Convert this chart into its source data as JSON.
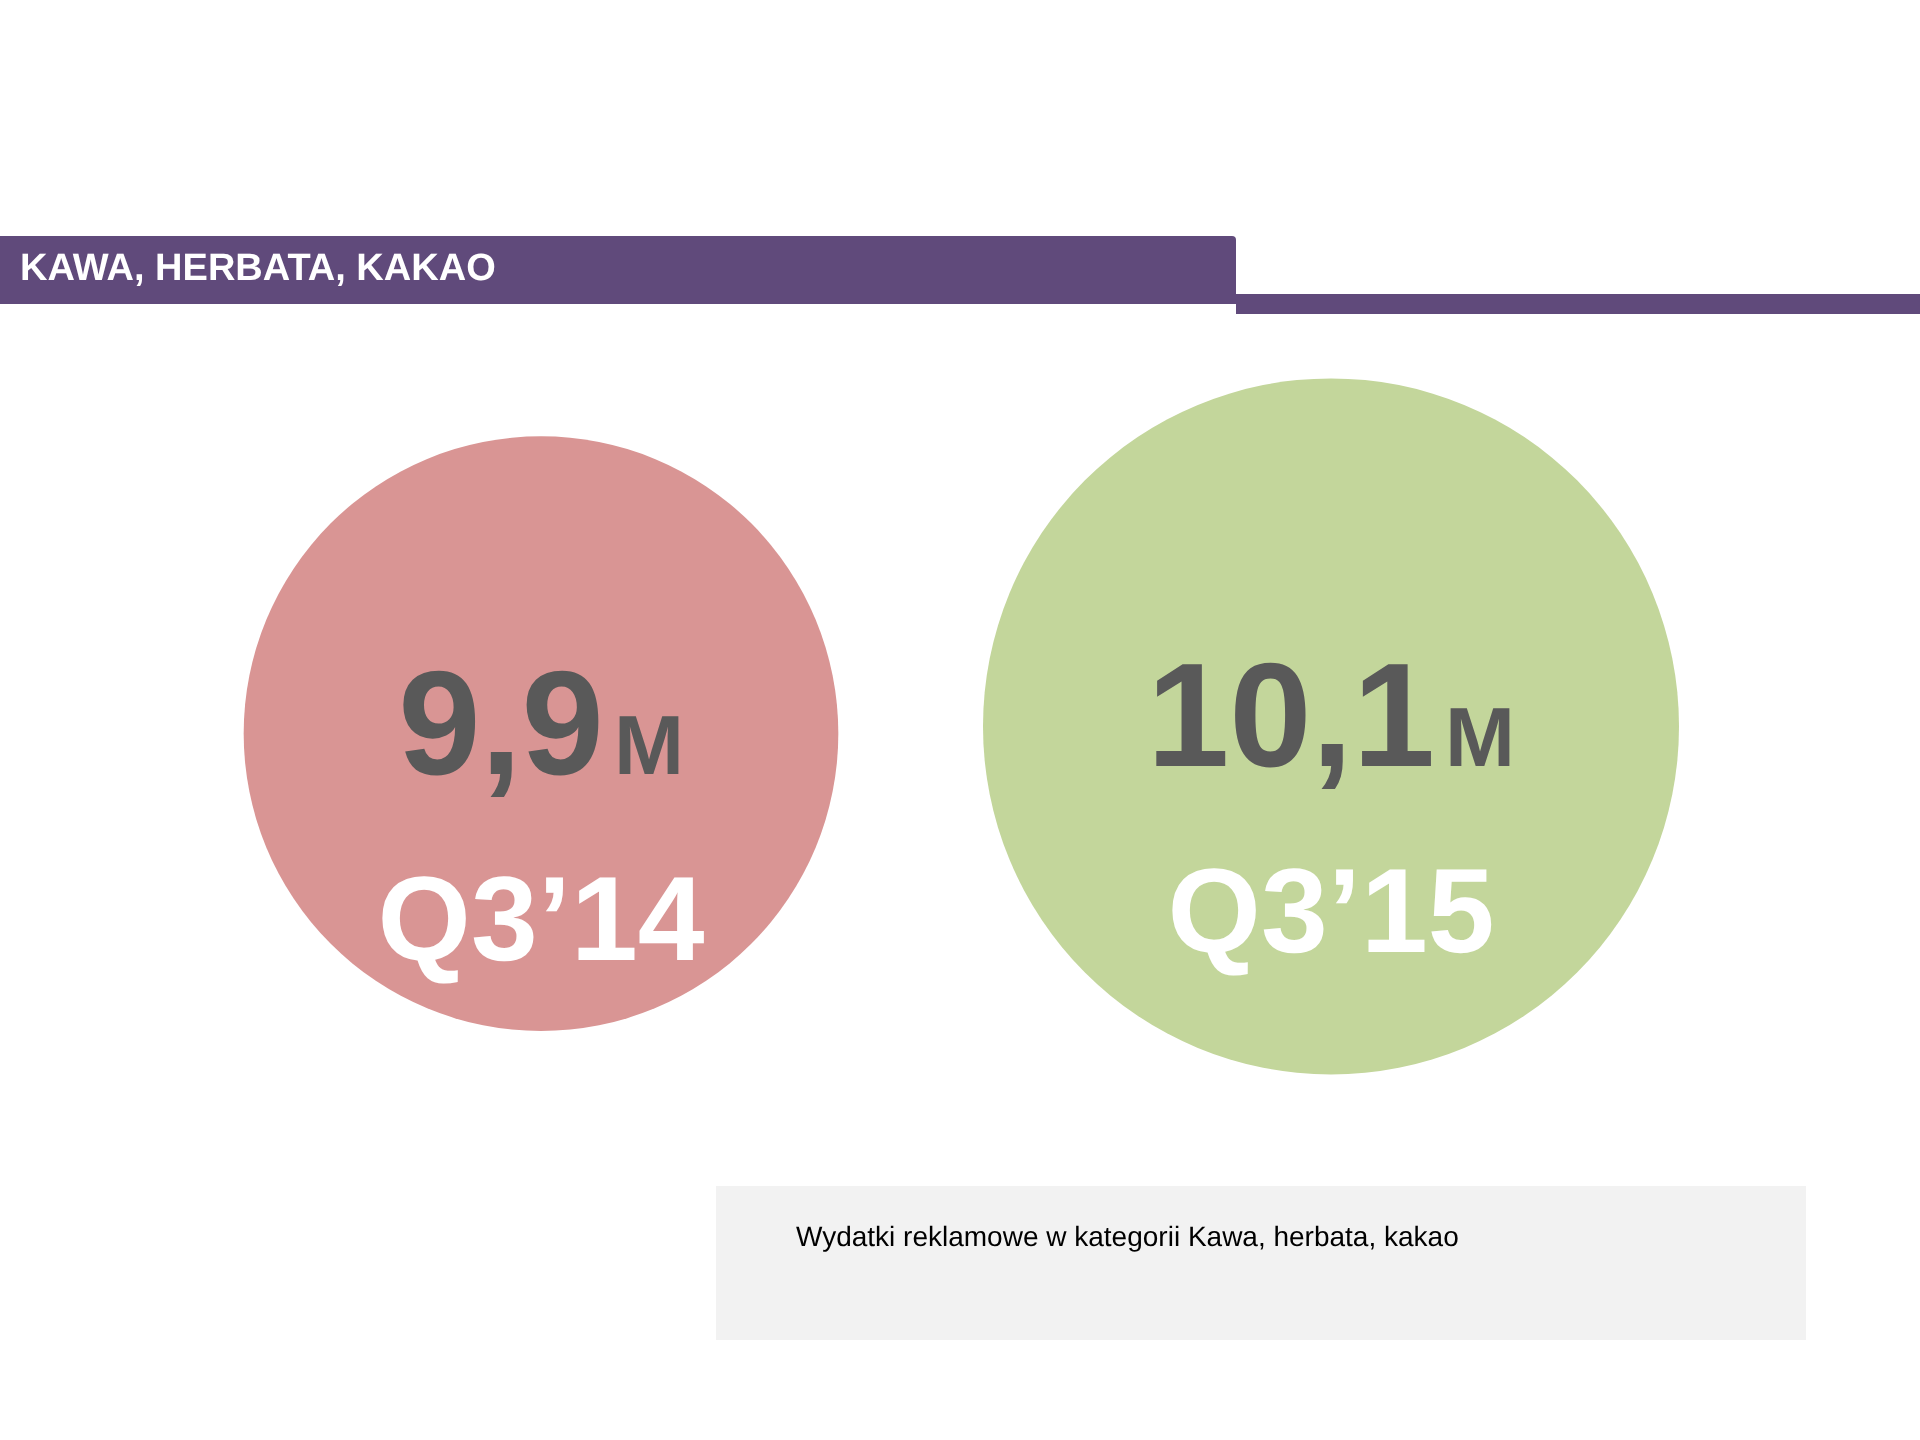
{
  "chart_data": {
    "type": "bubble",
    "title": "KAWA, HERBATA, KAKAO",
    "categories": [
      "Q3’14",
      "Q3’15"
    ],
    "values": [
      9.9,
      10.1
    ],
    "value_labels": [
      "9,9M",
      "10,1M"
    ],
    "sizes": [
      0.73,
      1
    ],
    "colors": [
      "#d99594",
      "#c3d69b"
    ],
    "tick_labels": false,
    "annotations": [
      "Wydatki reklamowe w kategorii Kawa, herbata, kakao"
    ]
  }
}
